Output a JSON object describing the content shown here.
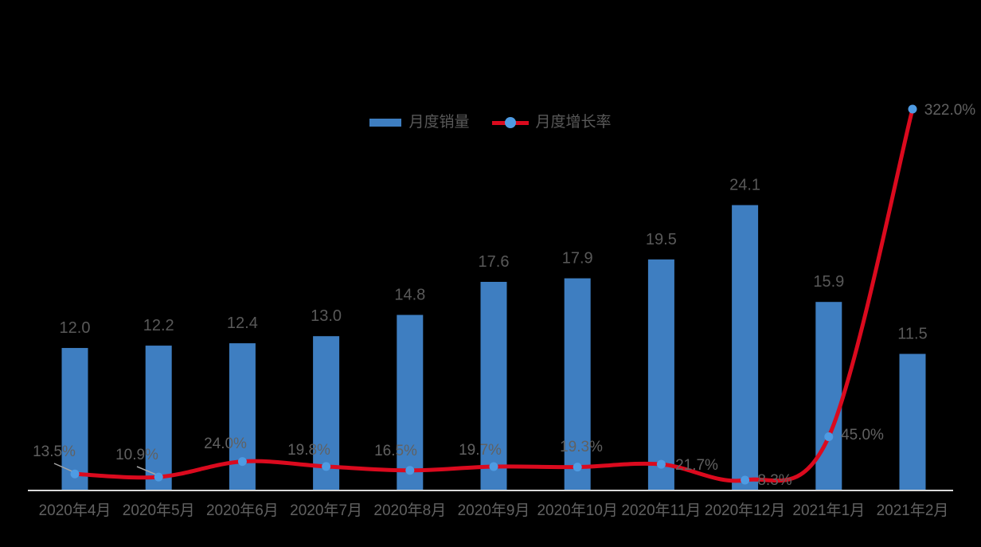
{
  "chart_data": {
    "type": "combo",
    "title": "",
    "categories": [
      "2020年4月",
      "2020年5月",
      "2020年6月",
      "2020年7月",
      "2020年8月",
      "2020年9月",
      "2020年10月",
      "2020年11月",
      "2020年12月",
      "2021年1月",
      "2021年2月"
    ],
    "series": [
      {
        "name": "月度销量",
        "type": "bar",
        "axis": "primary",
        "color": "#3E7EC1",
        "values": [
          12.0,
          12.2,
          12.4,
          13.0,
          14.8,
          17.6,
          17.9,
          19.5,
          24.1,
          15.9,
          11.5
        ],
        "data_labels": [
          "12.0",
          "12.2",
          "12.4",
          "13.0",
          "14.8",
          "17.6",
          "17.9",
          "19.5",
          "24.1",
          "15.9",
          "11.5"
        ]
      },
      {
        "name": "月度增长率",
        "type": "line",
        "axis": "secondary",
        "smooth": true,
        "color": "#DB0A1E",
        "marker_color": "#4E9BE3",
        "values": [
          13.5,
          10.9,
          24.0,
          19.8,
          16.5,
          19.7,
          19.3,
          21.7,
          8.3,
          45.0,
          322.0
        ],
        "data_labels": [
          "13.5%",
          "10.9%",
          "24.0%",
          "19.8%",
          "16.5%",
          "19.7%",
          "19.3%",
          "21.7%",
          "8.3%",
          "45.0%",
          "322.0%"
        ]
      }
    ],
    "xlabel": "",
    "ylabel": "",
    "axes": {
      "primary_y": {
        "visible": false,
        "min": 0,
        "max_est": 35
      },
      "secondary_y": {
        "visible": false,
        "min": 0,
        "max_est": 350
      },
      "x": {
        "visible": true,
        "line_color": "#D9D9D9"
      }
    },
    "grid": false,
    "legend_position": "top-center",
    "label_color": "#595959",
    "leader_line_color": "#A6A6A6",
    "background": "#000000"
  }
}
